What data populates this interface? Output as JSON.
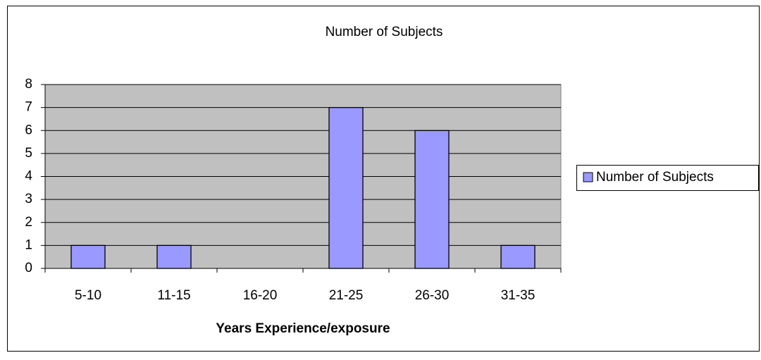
{
  "chart_data": {
    "type": "bar",
    "title": "Number of Subjects",
    "x_label": "Years Experience/exposure",
    "categories": [
      "5-10",
      "11-15",
      "16-20",
      "21-25",
      "26-30",
      "31-35"
    ],
    "series": [
      {
        "name": "Number of Subjects",
        "color": "#9999ff",
        "values": [
          1,
          1,
          0,
          7,
          6,
          1
        ]
      }
    ],
    "ylim": [
      0,
      8
    ],
    "yticks": [
      0,
      1,
      2,
      3,
      4,
      5,
      6,
      7,
      8
    ],
    "grid": true,
    "legend": "right"
  }
}
